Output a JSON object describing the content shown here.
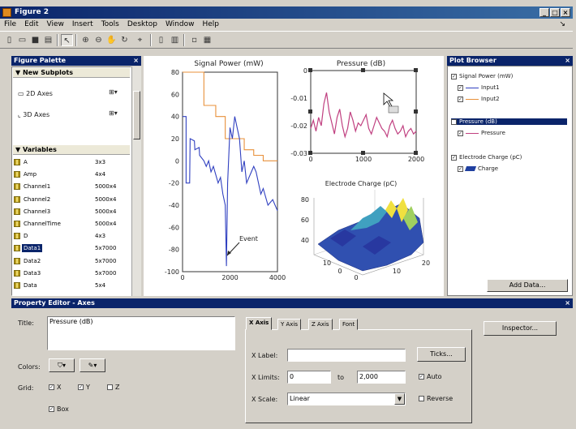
{
  "window": {
    "title": "Figure 2",
    "minimize_glyph": "_",
    "maximize_glyph": "□",
    "close_glyph": "×"
  },
  "menu": [
    "File",
    "Edit",
    "View",
    "Insert",
    "Tools",
    "Desktop",
    "Window",
    "Help"
  ],
  "menu_arrow": "↘",
  "toolbar_icons": [
    "new-file-icon",
    "open-file-icon",
    "save-icon",
    "print-icon",
    "edit-plot-arrow-icon",
    "zoom-in-icon",
    "zoom-out-icon",
    "pan-icon",
    "rotate-3d-icon",
    "data-cursor-icon",
    "insert-colorbar-icon",
    "insert-legend-icon",
    "hide-plot-tools-icon",
    "show-plot-tools-icon"
  ],
  "palette": {
    "title": "Figure Palette",
    "new_subplots": "New Subplots",
    "axes2d": "2D Axes",
    "axes3d": "3D Axes",
    "variables": "Variables",
    "vars": [
      {
        "name": "A",
        "size": "3x3"
      },
      {
        "name": "Amp",
        "size": "4x4"
      },
      {
        "name": "Channel1",
        "size": "5000x4"
      },
      {
        "name": "Channel2",
        "size": "5000x4"
      },
      {
        "name": "Channel3",
        "size": "5000x4"
      },
      {
        "name": "ChannelTime",
        "size": "5000x4"
      },
      {
        "name": "D",
        "size": "4x3"
      },
      {
        "name": "Data1",
        "size": "5x7000"
      },
      {
        "name": "Data2",
        "size": "5x7000"
      },
      {
        "name": "Data3",
        "size": "5x7000"
      },
      {
        "name": "Data",
        "size": "5x4"
      }
    ],
    "selected_index": 7
  },
  "plots": {
    "signal_power": {
      "title": "Signal Power (mW)",
      "yticks": [
        "80",
        "60",
        "40",
        "20",
        "0",
        "-20",
        "-40",
        "-60",
        "-80",
        "-100"
      ],
      "xticks": [
        "0",
        "2000",
        "4000"
      ],
      "annotation": "Event",
      "orange_color": "#e8903a",
      "blue_color": "#3040c0",
      "x_orange": [
        0,
        900,
        900,
        1400,
        1400,
        1800,
        1800,
        2600,
        2600,
        3000,
        3000,
        3400,
        3400,
        4000
      ],
      "y_orange": [
        80,
        80,
        50,
        50,
        40,
        40,
        20,
        20,
        10,
        10,
        5,
        5,
        0,
        0
      ],
      "x_blue": [
        0,
        150,
        150,
        300,
        320,
        500,
        520,
        700,
        720,
        900,
        1000,
        1100,
        1200,
        1300,
        1500,
        1600,
        1700,
        1800,
        1850,
        1900,
        2000,
        2100,
        2200,
        2300,
        2400,
        2500,
        2600,
        2700,
        2800,
        2900,
        3000,
        3100,
        3200,
        3300,
        3400,
        3600,
        3800,
        4000
      ],
      "y_blue": [
        40,
        40,
        -20,
        -20,
        20,
        18,
        10,
        12,
        5,
        0,
        -5,
        0,
        -10,
        -5,
        -20,
        -15,
        -30,
        -40,
        -95,
        -20,
        30,
        20,
        40,
        30,
        20,
        -10,
        0,
        -20,
        -15,
        -10,
        -5,
        -10,
        -20,
        -30,
        -25,
        -40,
        -35,
        -45
      ]
    },
    "pressure": {
      "title": "Pressure (dB)",
      "yticks": [
        "0",
        "-0.01",
        "-0.02",
        "-0.03"
      ],
      "xticks": [
        "0",
        "1000",
        "2000"
      ],
      "line_color": "#c04080",
      "x": [
        0,
        50,
        100,
        150,
        200,
        250,
        300,
        350,
        400,
        450,
        500,
        550,
        600,
        650,
        700,
        750,
        800,
        850,
        900,
        950,
        1000,
        1050,
        1100,
        1150,
        1200,
        1250,
        1300,
        1350,
        1400,
        1450,
        1500,
        1550,
        1600,
        1650,
        1700,
        1750,
        1800,
        1850,
        1900,
        1950,
        2000
      ],
      "y": [
        -0.021,
        -0.018,
        -0.022,
        -0.017,
        -0.02,
        -0.012,
        -0.008,
        -0.015,
        -0.019,
        -0.023,
        -0.017,
        -0.014,
        -0.02,
        -0.024,
        -0.021,
        -0.015,
        -0.018,
        -0.022,
        -0.019,
        -0.02,
        -0.018,
        -0.016,
        -0.021,
        -0.023,
        -0.02,
        -0.017,
        -0.019,
        -0.021,
        -0.022,
        -0.024,
        -0.02,
        -0.018,
        -0.021,
        -0.023,
        -0.022,
        -0.02,
        -0.024,
        -0.022,
        -0.021,
        -0.023,
        -0.022
      ]
    },
    "electrode": {
      "title": "Electrode Charge (pC)",
      "zticks": [
        "80",
        "60",
        "40"
      ],
      "xticks": [
        "10",
        "0",
        "0"
      ],
      "yticks": [
        "10",
        "20"
      ]
    }
  },
  "browser": {
    "title": "Plot Browser",
    "items": [
      {
        "label": "Signal Power (mW)",
        "checked": true,
        "kind": "axes"
      },
      {
        "label": "Input1",
        "checked": true,
        "kind": "line",
        "color": "#3040c0"
      },
      {
        "label": "Input2",
        "checked": true,
        "kind": "line",
        "color": "#e8903a"
      },
      {
        "label": "Pressure (dB)",
        "checked": true,
        "kind": "axes",
        "selected": true
      },
      {
        "label": "Pressure",
        "checked": true,
        "kind": "line",
        "color": "#c04080"
      },
      {
        "label": "Electrode Charge (pC)",
        "checked": true,
        "kind": "axes"
      },
      {
        "label": "Charge",
        "checked": true,
        "kind": "surface",
        "color": "#2040a0"
      }
    ],
    "add_data": "Add Data..."
  },
  "property_editor": {
    "title": "Property Editor - Axes",
    "title_label": "Title:",
    "title_value": "Pressure (dB)",
    "colors_label": "Colors:",
    "grid_label": "Grid:",
    "grid_x": "X",
    "grid_y": "Y",
    "grid_z": "Z",
    "box_label": "Box",
    "tabs": [
      "X Axis",
      "Y Axis",
      "Z Axis",
      "Font"
    ],
    "active_tab": 0,
    "xlabel_label": "X Label:",
    "xlabel_value": "",
    "ticks_button": "Ticks...",
    "xlimits_label": "X Limits:",
    "xlim_min": "0",
    "to_label": "to",
    "xlim_max": "2,000",
    "auto_label": "Auto",
    "xscale_label": "X Scale:",
    "xscale_value": "Linear",
    "reverse_label": "Reverse",
    "inspector_button": "Inspector..."
  }
}
